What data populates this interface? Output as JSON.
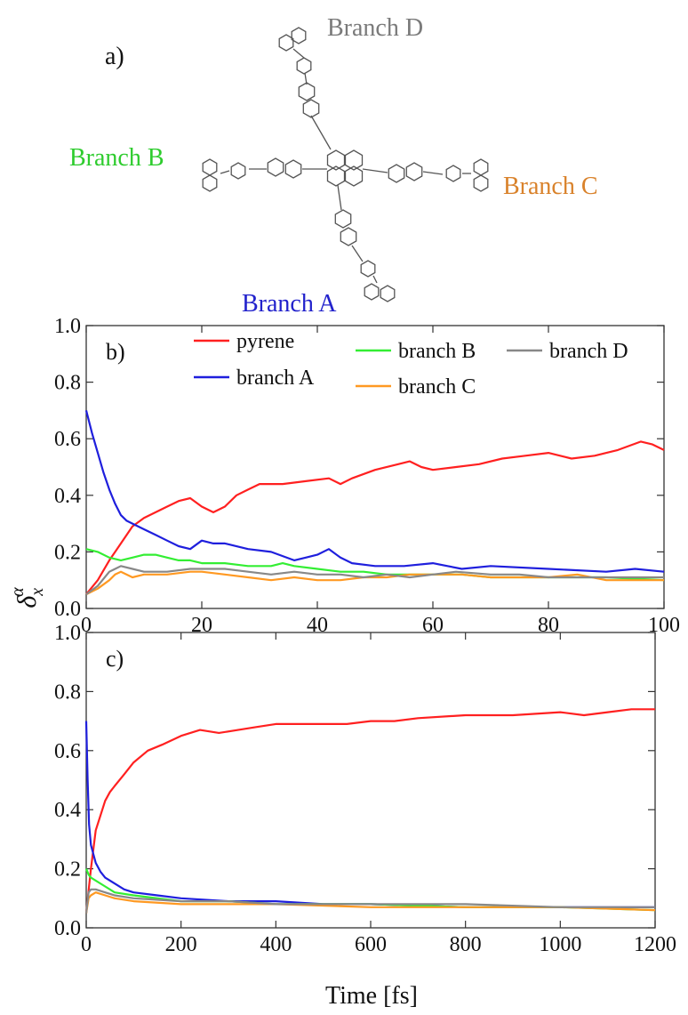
{
  "panel_a": {
    "label": "a)",
    "branch_labels": [
      {
        "key": "D",
        "text": "Branch D",
        "color": "#7a7a7a"
      },
      {
        "key": "B",
        "text": "Branch B",
        "color": "#2ecc2e"
      },
      {
        "key": "C",
        "text": "Branch C",
        "color": "#d9822b"
      },
      {
        "key": "A",
        "text": "Branch A",
        "color": "#2222cc"
      }
    ]
  },
  "ylabel_symbol": "δ",
  "ylabel_sub": "x",
  "ylabel_sup": "α",
  "chart_data": [
    {
      "panel": "b)",
      "type": "line",
      "xlim": [
        0,
        100
      ],
      "ylim": [
        0,
        1
      ],
      "xticks": [
        0,
        20,
        40,
        60,
        80,
        100
      ],
      "yticks": [
        "0.0",
        "0.2",
        "0.4",
        "0.6",
        "0.8",
        "1.0"
      ],
      "grid": false,
      "legend_position": "top",
      "series": [
        {
          "name": "pyrene",
          "color": "#ff2020",
          "x": [
            0,
            2,
            4,
            6,
            8,
            10,
            12,
            14,
            16,
            18,
            20,
            22,
            24,
            26,
            28,
            30,
            34,
            38,
            42,
            44,
            46,
            50,
            54,
            56,
            58,
            60,
            64,
            68,
            72,
            76,
            80,
            84,
            88,
            92,
            96,
            98,
            100
          ],
          "y": [
            0.05,
            0.1,
            0.17,
            0.23,
            0.29,
            0.32,
            0.34,
            0.36,
            0.38,
            0.39,
            0.36,
            0.34,
            0.36,
            0.4,
            0.42,
            0.44,
            0.44,
            0.45,
            0.46,
            0.44,
            0.46,
            0.49,
            0.51,
            0.52,
            0.5,
            0.49,
            0.5,
            0.51,
            0.53,
            0.54,
            0.55,
            0.53,
            0.54,
            0.56,
            0.59,
            0.58,
            0.56
          ]
        },
        {
          "name": "branch A",
          "color": "#1f1fdd",
          "x": [
            0,
            1,
            2,
            3,
            4,
            5,
            6,
            7,
            8,
            10,
            12,
            14,
            16,
            18,
            20,
            22,
            24,
            28,
            32,
            36,
            38,
            40,
            42,
            44,
            46,
            50,
            55,
            60,
            65,
            70,
            80,
            90,
            95,
            100
          ],
          "y": [
            0.7,
            0.62,
            0.55,
            0.48,
            0.42,
            0.37,
            0.33,
            0.31,
            0.3,
            0.28,
            0.26,
            0.24,
            0.22,
            0.21,
            0.24,
            0.23,
            0.23,
            0.21,
            0.2,
            0.17,
            0.18,
            0.19,
            0.21,
            0.18,
            0.16,
            0.15,
            0.15,
            0.16,
            0.14,
            0.15,
            0.14,
            0.13,
            0.14,
            0.13
          ]
        },
        {
          "name": "branch B",
          "color": "#33ee33",
          "x": [
            0,
            2,
            4,
            6,
            8,
            10,
            12,
            14,
            16,
            18,
            20,
            24,
            28,
            32,
            34,
            36,
            40,
            44,
            48,
            52,
            56,
            60,
            65,
            70,
            80,
            90,
            100
          ],
          "y": [
            0.21,
            0.2,
            0.18,
            0.17,
            0.18,
            0.19,
            0.19,
            0.18,
            0.17,
            0.17,
            0.16,
            0.16,
            0.15,
            0.15,
            0.16,
            0.15,
            0.14,
            0.13,
            0.13,
            0.12,
            0.12,
            0.12,
            0.12,
            0.11,
            0.11,
            0.11,
            0.1
          ]
        },
        {
          "name": "branch C",
          "color": "#ff9922",
          "x": [
            0,
            2,
            4,
            5,
            6,
            8,
            10,
            14,
            18,
            20,
            24,
            28,
            32,
            36,
            40,
            44,
            48,
            52,
            56,
            60,
            65,
            70,
            75,
            80,
            85,
            90,
            95,
            100
          ],
          "y": [
            0.05,
            0.07,
            0.1,
            0.12,
            0.13,
            0.11,
            0.12,
            0.12,
            0.13,
            0.13,
            0.12,
            0.11,
            0.1,
            0.11,
            0.1,
            0.1,
            0.11,
            0.11,
            0.12,
            0.12,
            0.12,
            0.11,
            0.11,
            0.11,
            0.12,
            0.1,
            0.1,
            0.1
          ]
        },
        {
          "name": "branch D",
          "color": "#888888",
          "x": [
            0,
            2,
            4,
            6,
            8,
            10,
            14,
            18,
            20,
            22,
            24,
            28,
            32,
            36,
            40,
            44,
            48,
            52,
            56,
            60,
            64,
            70,
            75,
            80,
            90,
            100
          ],
          "y": [
            0.05,
            0.08,
            0.13,
            0.15,
            0.14,
            0.13,
            0.13,
            0.14,
            0.14,
            0.14,
            0.14,
            0.13,
            0.12,
            0.13,
            0.12,
            0.12,
            0.11,
            0.12,
            0.11,
            0.12,
            0.13,
            0.12,
            0.12,
            0.11,
            0.11,
            0.11
          ]
        }
      ]
    },
    {
      "panel": "c)",
      "type": "line",
      "xlim": [
        0,
        1200
      ],
      "ylim": [
        0,
        1
      ],
      "xticks": [
        0,
        200,
        400,
        600,
        800,
        1000,
        1200
      ],
      "yticks": [
        "0.0",
        "0.2",
        "0.4",
        "0.6",
        "0.8",
        "1.0"
      ],
      "grid": false,
      "xlabel": "Time [fs]",
      "series": [
        {
          "color": "#ff2020",
          "x": [
            0,
            10,
            20,
            30,
            40,
            50,
            60,
            80,
            100,
            130,
            160,
            200,
            240,
            280,
            320,
            360,
            400,
            450,
            500,
            550,
            600,
            650,
            700,
            800,
            900,
            1000,
            1050,
            1100,
            1150,
            1200
          ],
          "y": [
            0.05,
            0.2,
            0.33,
            0.38,
            0.43,
            0.46,
            0.48,
            0.52,
            0.56,
            0.6,
            0.62,
            0.65,
            0.67,
            0.66,
            0.67,
            0.68,
            0.69,
            0.69,
            0.69,
            0.69,
            0.7,
            0.7,
            0.71,
            0.72,
            0.72,
            0.73,
            0.72,
            0.73,
            0.74,
            0.74
          ]
        },
        {
          "color": "#1f1fdd",
          "x": [
            0,
            3,
            6,
            10,
            15,
            20,
            30,
            40,
            60,
            80,
            100,
            150,
            200,
            300,
            400,
            500,
            600,
            800,
            1000,
            1200
          ],
          "y": [
            0.7,
            0.5,
            0.35,
            0.28,
            0.25,
            0.22,
            0.19,
            0.17,
            0.15,
            0.13,
            0.12,
            0.11,
            0.1,
            0.09,
            0.09,
            0.08,
            0.08,
            0.07,
            0.07,
            0.07
          ]
        },
        {
          "color": "#33ee33",
          "x": [
            0,
            5,
            10,
            20,
            40,
            60,
            100,
            200,
            300,
            400,
            600,
            800,
            1000,
            1200
          ],
          "y": [
            0.2,
            0.18,
            0.17,
            0.16,
            0.14,
            0.12,
            0.11,
            0.09,
            0.09,
            0.08,
            0.08,
            0.07,
            0.07,
            0.06
          ]
        },
        {
          "color": "#ff9922",
          "x": [
            0,
            5,
            10,
            20,
            40,
            60,
            100,
            200,
            300,
            400,
            600,
            800,
            1000,
            1200
          ],
          "y": [
            0.05,
            0.1,
            0.11,
            0.12,
            0.11,
            0.1,
            0.09,
            0.08,
            0.08,
            0.08,
            0.07,
            0.07,
            0.07,
            0.06
          ]
        },
        {
          "color": "#888888",
          "x": [
            0,
            5,
            10,
            20,
            40,
            60,
            100,
            200,
            300,
            400,
            600,
            800,
            1000,
            1200
          ],
          "y": [
            0.05,
            0.12,
            0.13,
            0.13,
            0.12,
            0.11,
            0.1,
            0.09,
            0.09,
            0.08,
            0.08,
            0.08,
            0.07,
            0.07
          ]
        }
      ]
    }
  ]
}
